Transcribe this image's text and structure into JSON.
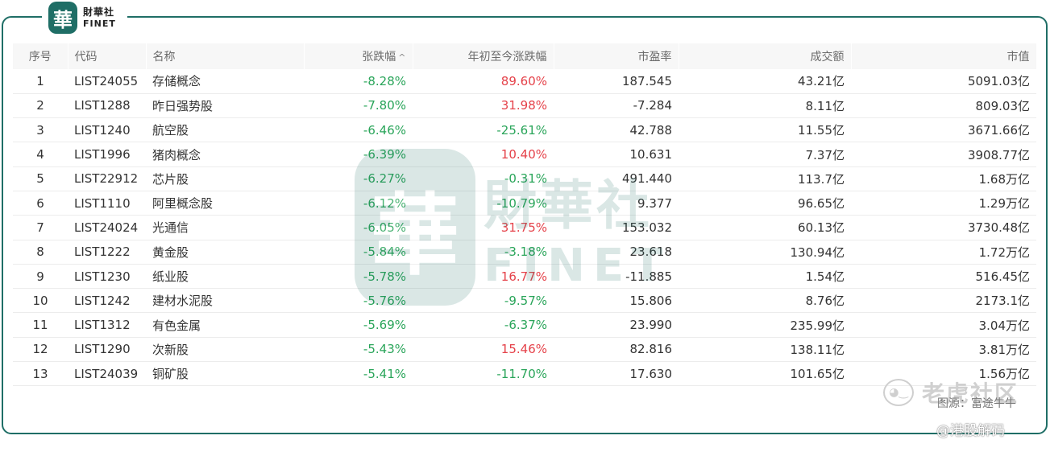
{
  "brand": {
    "logo_char": "華",
    "name_cn": "財華社",
    "name_en": "FINET"
  },
  "watermark": {
    "logo_char": "華",
    "name_cn": "財華社",
    "name_en": "FINET"
  },
  "table": {
    "headers": {
      "idx": "序号",
      "code": "代码",
      "name": "名称",
      "change": "张跌幅",
      "ytd": "年初至今涨跌幅",
      "pe": "市盈率",
      "turnover": "成交额",
      "mktcap": "市值"
    },
    "sort_indicator": "^",
    "rows": [
      {
        "idx": "1",
        "code": "LIST24055",
        "name": "存储概念",
        "change": "-8.28%",
        "ytd": "89.60%",
        "pe": "187.545",
        "turnover": "43.21亿",
        "mktcap": "5091.03亿"
      },
      {
        "idx": "2",
        "code": "LIST1288",
        "name": "昨日强势股",
        "change": "-7.80%",
        "ytd": "31.98%",
        "pe": "-7.284",
        "turnover": "8.11亿",
        "mktcap": "809.03亿"
      },
      {
        "idx": "3",
        "code": "LIST1240",
        "name": "航空股",
        "change": "-6.46%",
        "ytd": "-25.61%",
        "pe": "42.788",
        "turnover": "11.55亿",
        "mktcap": "3671.66亿"
      },
      {
        "idx": "4",
        "code": "LIST1996",
        "name": "猪肉概念",
        "change": "-6.39%",
        "ytd": "10.40%",
        "pe": "10.631",
        "turnover": "7.37亿",
        "mktcap": "3908.77亿"
      },
      {
        "idx": "5",
        "code": "LIST22912",
        "name": "芯片股",
        "change": "-6.27%",
        "ytd": "-0.31%",
        "pe": "491.440",
        "turnover": "113.7亿",
        "mktcap": "1.68万亿"
      },
      {
        "idx": "6",
        "code": "LIST1110",
        "name": "阿里概念股",
        "change": "-6.12%",
        "ytd": "-10.79%",
        "pe": "9.377",
        "turnover": "96.65亿",
        "mktcap": "1.29万亿"
      },
      {
        "idx": "7",
        "code": "LIST24024",
        "name": "光通信",
        "change": "-6.05%",
        "ytd": "31.75%",
        "pe": "153.032",
        "turnover": "60.13亿",
        "mktcap": "3730.48亿"
      },
      {
        "idx": "8",
        "code": "LIST1222",
        "name": "黄金股",
        "change": "-5.84%",
        "ytd": "-3.18%",
        "pe": "23.618",
        "turnover": "130.94亿",
        "mktcap": "1.72万亿"
      },
      {
        "idx": "9",
        "code": "LIST1230",
        "name": "纸业股",
        "change": "-5.78%",
        "ytd": "16.77%",
        "pe": "-11.885",
        "turnover": "1.54亿",
        "mktcap": "516.45亿"
      },
      {
        "idx": "10",
        "code": "LIST1242",
        "name": "建材水泥股",
        "change": "-5.76%",
        "ytd": "-9.57%",
        "pe": "15.806",
        "turnover": "8.76亿",
        "mktcap": "2173.1亿"
      },
      {
        "idx": "11",
        "code": "LIST1312",
        "name": "有色金属",
        "change": "-5.69%",
        "ytd": "-6.37%",
        "pe": "23.990",
        "turnover": "235.99亿",
        "mktcap": "3.04万亿"
      },
      {
        "idx": "12",
        "code": "LIST1290",
        "name": "次新股",
        "change": "-5.43%",
        "ytd": "15.46%",
        "pe": "82.816",
        "turnover": "138.11亿",
        "mktcap": "3.81万亿"
      },
      {
        "idx": "13",
        "code": "LIST24039",
        "name": "铜矿股",
        "change": "-5.41%",
        "ytd": "-11.70%",
        "pe": "17.630",
        "turnover": "101.65亿",
        "mktcap": "1.56万亿"
      }
    ]
  },
  "overlay": {
    "community_icon": "tiger-icon",
    "community_name": "老虎社区",
    "source": "图源：富途牛牛",
    "credit": "@港股解码"
  },
  "colors": {
    "frame": "#1f6e66",
    "negative": "#2aa55a",
    "positive": "#e5424a"
  }
}
